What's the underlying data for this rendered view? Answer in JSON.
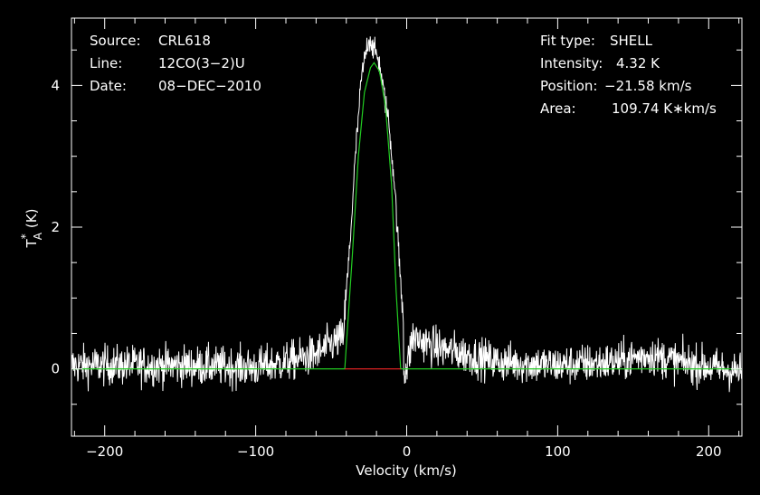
{
  "chart_data": {
    "type": "line",
    "xlabel": "Velocity (km/s)",
    "ylabel_main": "T",
    "ylabel_sub": "A",
    "ylabel_sup": "*",
    "ylabel_unit": "(K)",
    "xlim": [
      -222,
      222
    ],
    "ylim": [
      -0.95,
      4.95
    ],
    "x_ticks": [
      -200,
      -100,
      0,
      100,
      200
    ],
    "x_tick_labels": [
      "−200",
      "−100",
      "0",
      "100",
      "200"
    ],
    "y_ticks": [
      0,
      2,
      4
    ],
    "y_tick_labels": [
      "0",
      "2",
      "4"
    ],
    "series": [
      {
        "role": "observed spectrum",
        "color": "#ffffff",
        "x_range": [
          -222,
          222
        ],
        "noise_rms": 0.2,
        "baseline_profile": {
          "x": [
            -222,
            -150,
            -100,
            -80,
            -60,
            -50,
            -42,
            -35,
            0,
            4,
            20,
            60,
            100,
            140,
            160,
            180,
            222
          ],
          "y": [
            0.05,
            0.05,
            0.02,
            0.1,
            0.2,
            0.35,
            0.45,
            0.0,
            0.0,
            0.45,
            0.3,
            0.1,
            0.05,
            0.1,
            0.2,
            0.1,
            -0.05
          ]
        },
        "peak_points": {
          "x": [
            -42,
            -38,
            -34,
            -30,
            -26,
            -24,
            -22,
            -20,
            -18,
            -16,
            -12,
            -8,
            -4,
            -2
          ],
          "y": [
            0.5,
            1.6,
            3.0,
            4.1,
            4.6,
            4.65,
            4.5,
            4.45,
            4.3,
            4.0,
            3.5,
            2.6,
            1.2,
            0.7
          ]
        }
      },
      {
        "role": "SHELL fit",
        "color": "#22cc22",
        "x": [
          -222,
          -41,
          -36,
          -32,
          -28,
          -24,
          -21.58,
          -18,
          -14,
          -10,
          -7,
          -4,
          222
        ],
        "y": [
          0,
          0,
          1.6,
          3.0,
          3.9,
          4.25,
          4.32,
          4.2,
          3.7,
          2.6,
          1.1,
          0,
          0
        ]
      },
      {
        "role": "fit window",
        "color": "#dd2222",
        "x": [
          -41,
          -4
        ],
        "y": [
          0,
          0
        ]
      }
    ]
  },
  "info_left": [
    {
      "key": "Source:",
      "value": "CRL618"
    },
    {
      "key": "Line:",
      "value": "12CO(3−2)U"
    },
    {
      "key": "Date:",
      "value": "08−DEC−2010"
    }
  ],
  "info_right": [
    {
      "key": "Fit type:",
      "value": "SHELL"
    },
    {
      "key": "Intensity:",
      "value": "4.32 K"
    },
    {
      "key": "Position:",
      "value": "−21.58 km/s"
    },
    {
      "key": "Area:",
      "value": "109.74 K∗km/s"
    }
  ]
}
